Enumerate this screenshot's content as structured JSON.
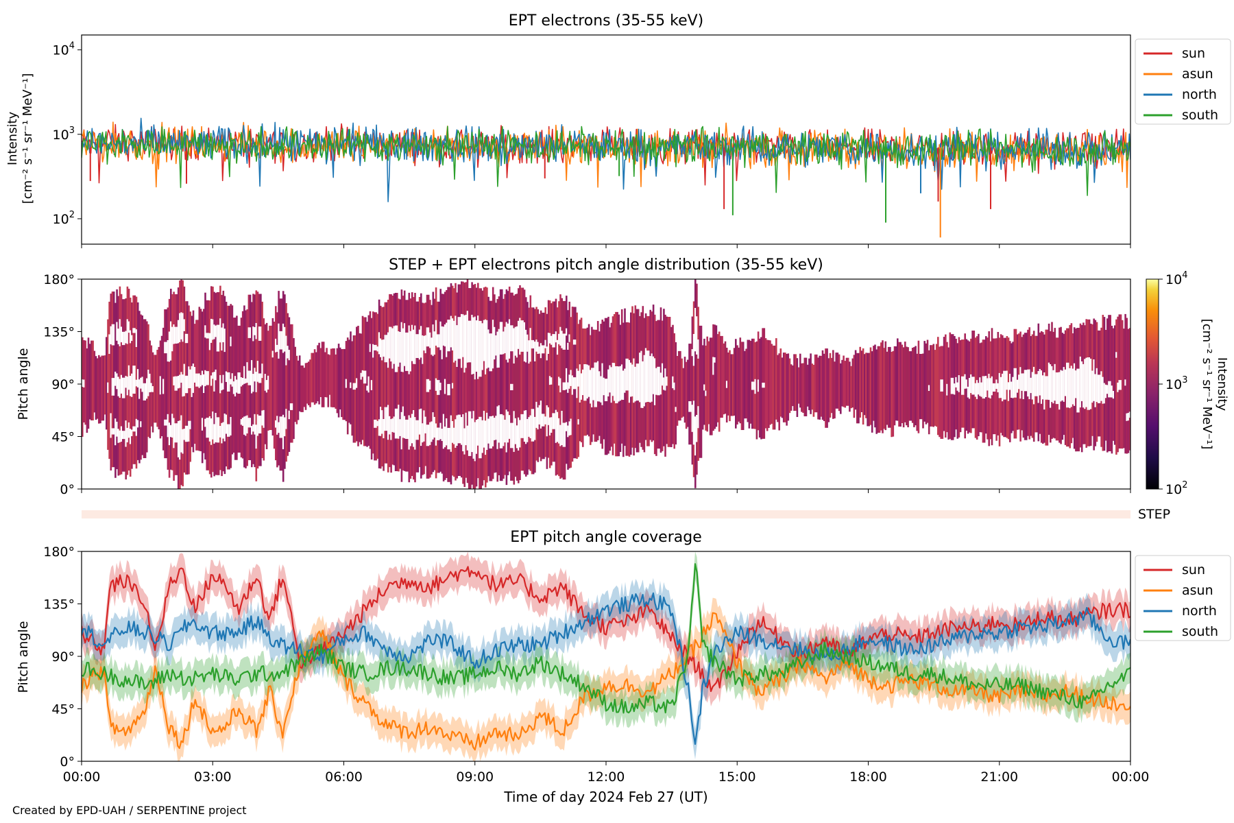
{
  "footer": "Created by EPD-UAH / SERPENTINE project",
  "chart_data": [
    {
      "type": "line",
      "title": "EPT electrons (35-55 keV)",
      "ylabel_line1": "Intensity",
      "ylabel_line2": "[cm⁻² s⁻¹ sr⁻¹ MeV⁻¹]",
      "yscale": "log",
      "ylim": [
        50,
        15000
      ],
      "yticks": [
        {
          "value": 100,
          "base": "10",
          "exp": "2"
        },
        {
          "value": 1000,
          "base": "10",
          "exp": "3"
        },
        {
          "value": 10000,
          "base": "10",
          "exp": "4"
        }
      ],
      "legend": [
        "sun",
        "asun",
        "north",
        "south"
      ],
      "legend_position": "outside-right",
      "series": [
        {
          "name": "sun",
          "color": "#d62728",
          "typical": 800,
          "spread": 0.55
        },
        {
          "name": "asun",
          "color": "#ff7f0e",
          "typical": 780,
          "spread": 0.6
        },
        {
          "name": "north",
          "color": "#1f77b4",
          "typical": 790,
          "spread": 0.6
        },
        {
          "name": "south",
          "color": "#2ca02c",
          "typical": 780,
          "spread": 0.6
        }
      ],
      "minima": [
        {
          "series": "sun",
          "x": 0.2,
          "y": 280
        },
        {
          "series": "sun",
          "x": 2.4,
          "y": 260
        },
        {
          "series": "sun",
          "x": 10.6,
          "y": 300
        },
        {
          "series": "south",
          "x": 12.3,
          "y": 320
        },
        {
          "series": "sun",
          "x": 14.7,
          "y": 130
        },
        {
          "series": "south",
          "x": 14.9,
          "y": 110
        },
        {
          "series": "south",
          "x": 18.4,
          "y": 90
        },
        {
          "series": "north",
          "x": 19.2,
          "y": 200
        },
        {
          "series": "sun",
          "x": 19.6,
          "y": 160
        },
        {
          "series": "asun",
          "x": 19.65,
          "y": 60
        },
        {
          "series": "sun",
          "x": 20.8,
          "y": 130
        }
      ]
    },
    {
      "type": "heatmap",
      "title": "STEP + EPT electrons pitch angle distribution (35-55 keV)",
      "ylabel": "Pitch angle",
      "ylim": [
        0,
        180
      ],
      "colorbar_label_line1": "Intensity",
      "colorbar_label_line2": "[cm⁻² s⁻¹ sr⁻¹ MeV⁻¹]",
      "colorbar_range": [
        100,
        10000
      ],
      "colorbar_ticks": [
        {
          "value": 100,
          "base": "10",
          "exp": "2"
        },
        {
          "value": 1000,
          "base": "10",
          "exp": "3"
        },
        {
          "value": 10000,
          "base": "10",
          "exp": "4"
        }
      ],
      "colormap": "inferno",
      "cell_color": "#a8255a"
    },
    {
      "type": "area",
      "label": "STEP",
      "color": "#fdeae2"
    },
    {
      "type": "line",
      "title": "EPT pitch angle coverage",
      "ylabel": "Pitch angle",
      "xlabel": "Time of day 2024 Feb 27 (UT)",
      "ylim": [
        0,
        180
      ],
      "legend": [
        "sun",
        "asun",
        "north",
        "south"
      ],
      "legend_position": "outside-right",
      "series": [
        {
          "name": "sun",
          "color": "#d62728",
          "x": [
            0,
            0.5,
            0.65,
            1.0,
            1.4,
            1.7,
            2.0,
            2.3,
            2.6,
            3.0,
            3.3,
            3.6,
            4.0,
            4.3,
            4.6,
            5.0,
            5.5,
            6.0,
            6.5,
            7.0,
            7.5,
            8.0,
            8.5,
            9.0,
            9.5,
            10.0,
            10.5,
            11.0,
            11.5,
            12.0,
            12.5,
            13.0,
            13.5,
            14.0,
            14.5,
            15.0,
            15.5,
            16.0,
            16.5,
            17.0,
            17.5,
            18.0,
            18.5,
            19.0,
            19.5,
            20.0,
            20.5,
            21.0,
            21.5,
            22.0,
            22.5,
            23.0,
            23.5,
            24.0
          ],
          "y": [
            110,
            95,
            150,
            155,
            140,
            95,
            150,
            165,
            130,
            160,
            150,
            130,
            160,
            120,
            160,
            85,
            95,
            110,
            130,
            150,
            155,
            150,
            160,
            165,
            150,
            155,
            140,
            150,
            125,
            115,
            120,
            130,
            105,
            85,
            60,
            95,
            120,
            105,
            90,
            105,
            90,
            105,
            110,
            105,
            110,
            115,
            115,
            120,
            115,
            125,
            120,
            125,
            130,
            130
          ]
        },
        {
          "name": "asun",
          "color": "#ff7f0e",
          "x": [
            0,
            0.5,
            0.65,
            1.0,
            1.4,
            1.7,
            2.0,
            2.3,
            2.6,
            3.0,
            3.3,
            3.6,
            4.0,
            4.3,
            4.6,
            5.0,
            5.5,
            6.0,
            6.5,
            7.0,
            7.5,
            8.0,
            8.5,
            9.0,
            9.5,
            10.0,
            10.5,
            11.0,
            11.5,
            12.0,
            12.5,
            13.0,
            13.5,
            14.0,
            14.5,
            15.0,
            15.5,
            16.0,
            16.5,
            17.0,
            17.5,
            18.0,
            18.5,
            19.0,
            19.5,
            20.0,
            20.5,
            21.0,
            21.5,
            22.0,
            22.5,
            23.0,
            23.5,
            24.0
          ],
          "y": [
            65,
            80,
            30,
            25,
            40,
            80,
            30,
            15,
            55,
            25,
            30,
            45,
            25,
            60,
            25,
            85,
            110,
            70,
            50,
            30,
            25,
            30,
            20,
            15,
            25,
            20,
            40,
            25,
            55,
            65,
            65,
            60,
            75,
            95,
            125,
            85,
            60,
            70,
            85,
            70,
            85,
            70,
            65,
            70,
            65,
            60,
            60,
            55,
            60,
            55,
            60,
            55,
            50,
            50
          ]
        },
        {
          "name": "north",
          "color": "#1f77b4",
          "x": [
            0,
            0.5,
            1.0,
            1.5,
            2.0,
            2.5,
            3.0,
            3.5,
            4.0,
            4.5,
            5.0,
            5.5,
            6.0,
            6.5,
            7.0,
            7.5,
            8.0,
            8.5,
            9.0,
            9.5,
            10.0,
            10.5,
            11.0,
            11.5,
            12.0,
            12.5,
            13.0,
            13.5,
            13.9,
            14.05,
            14.2,
            14.5,
            15.0,
            15.5,
            16.0,
            16.5,
            17.0,
            17.5,
            18.0,
            18.5,
            19.0,
            19.5,
            20.0,
            20.5,
            21.0,
            21.5,
            22.0,
            22.5,
            23.0,
            23.5,
            24.0
          ],
          "y": [
            115,
            100,
            115,
            110,
            100,
            120,
            110,
            110,
            120,
            100,
            95,
            90,
            105,
            110,
            95,
            90,
            105,
            100,
            85,
            95,
            100,
            100,
            110,
            120,
            130,
            135,
            140,
            130,
            60,
            10,
            60,
            95,
            110,
            105,
            100,
            95,
            90,
            95,
            105,
            100,
            95,
            100,
            105,
            110,
            110,
            115,
            115,
            120,
            125,
            105,
            100
          ]
        },
        {
          "name": "south",
          "color": "#2ca02c",
          "x": [
            0,
            0.5,
            1.0,
            1.5,
            2.0,
            2.5,
            3.0,
            3.5,
            4.0,
            4.5,
            5.0,
            5.5,
            6.0,
            6.5,
            7.0,
            7.5,
            8.0,
            8.5,
            9.0,
            9.5,
            10.0,
            10.5,
            11.0,
            11.5,
            12.0,
            12.5,
            13.0,
            13.5,
            13.9,
            14.05,
            14.2,
            14.5,
            15.0,
            15.5,
            16.0,
            16.5,
            17.0,
            17.5,
            18.0,
            18.5,
            19.0,
            19.5,
            20.0,
            20.5,
            21.0,
            21.5,
            22.0,
            22.5,
            23.0,
            23.5,
            24.0
          ],
          "y": [
            80,
            75,
            70,
            65,
            75,
            70,
            75,
            70,
            75,
            75,
            85,
            95,
            80,
            75,
            80,
            80,
            75,
            70,
            75,
            80,
            75,
            85,
            75,
            65,
            50,
            45,
            50,
            45,
            95,
            175,
            100,
            85,
            70,
            75,
            75,
            85,
            95,
            90,
            85,
            80,
            75,
            75,
            70,
            65,
            65,
            65,
            60,
            55,
            50,
            65,
            75
          ]
        }
      ]
    }
  ],
  "x_axis": {
    "ticks": [
      "00:00",
      "03:00",
      "06:00",
      "09:00",
      "12:00",
      "15:00",
      "18:00",
      "21:00",
      "00:00"
    ],
    "xlim": [
      0,
      24
    ]
  },
  "pitch_ticks": [
    "0°",
    "45°",
    "90°",
    "135°",
    "180°"
  ]
}
